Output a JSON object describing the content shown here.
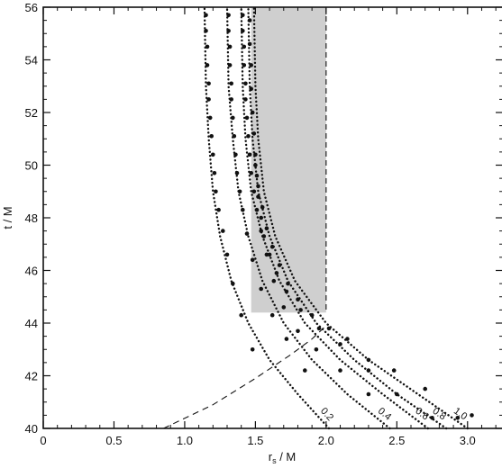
{
  "chart_data": {
    "type": "scatter",
    "title": "",
    "xlabel": "r_s / M",
    "xlabel_main": "r",
    "xlabel_sub": "s",
    "xlabel_rest": " / M",
    "ylabel": "t / M",
    "xlim": [
      0,
      3.25
    ],
    "ylim": [
      40,
      56
    ],
    "x_ticks": [
      0,
      0.5,
      1.0,
      1.5,
      2.0,
      2.5,
      3.0
    ],
    "x_tick_labels": [
      "0",
      "0.5",
      "1.0",
      "1.5",
      "2.0",
      "2.5",
      "3.0"
    ],
    "y_ticks": [
      40,
      42,
      44,
      46,
      48,
      50,
      52,
      54,
      56
    ],
    "y_tick_labels": [
      "40",
      "42",
      "44",
      "46",
      "48",
      "50",
      "52",
      "54",
      "56"
    ],
    "grid": false,
    "shaded_region": {
      "x_from": 1.47,
      "x_to": 2.0,
      "y_from": 44.4,
      "y_to": 56
    },
    "dashed_curve": {
      "x": [
        0.85,
        1.2,
        1.5,
        1.75,
        1.9,
        2.0
      ],
      "y": [
        40,
        40.9,
        41.9,
        42.8,
        43.4,
        43.9
      ]
    },
    "series": [
      {
        "name": "0.2",
        "curve": {
          "x": [
            2.02,
            1.8,
            1.6,
            1.45,
            1.33,
            1.25,
            1.2,
            1.17,
            1.15,
            1.14
          ],
          "y": [
            40,
            41.3,
            42.6,
            44,
            45.6,
            47.3,
            49,
            51,
            53,
            56
          ]
        },
        "points": {
          "x": [
            1.15,
            1.15,
            1.16,
            1.16,
            1.17,
            1.17,
            1.18,
            1.19,
            1.2,
            1.21,
            1.22,
            1.24,
            1.27,
            1.3,
            1.34,
            1.4,
            1.48
          ],
          "y": [
            55.7,
            55.1,
            54.5,
            53.8,
            53.1,
            52.5,
            51.8,
            51.1,
            50.4,
            49.7,
            49,
            48.3,
            47.5,
            46.6,
            45.5,
            44.3,
            43
          ]
        }
      },
      {
        "name": "0.4",
        "curve": {
          "x": [
            2.45,
            2.15,
            1.9,
            1.7,
            1.55,
            1.45,
            1.38,
            1.34,
            1.31,
            1.3
          ],
          "y": [
            40,
            41.3,
            42.6,
            44,
            45.6,
            47.3,
            49,
            51,
            53,
            56
          ]
        },
        "points": {
          "x": [
            1.31,
            1.31,
            1.32,
            1.32,
            1.33,
            1.33,
            1.34,
            1.35,
            1.36,
            1.37,
            1.39,
            1.41,
            1.44,
            1.48,
            1.54,
            1.62,
            1.72,
            1.85
          ],
          "y": [
            55.7,
            55.1,
            54.5,
            53.8,
            53.1,
            52.5,
            51.8,
            51.1,
            50.4,
            49.7,
            49,
            48.3,
            47.4,
            46.4,
            45.3,
            44.3,
            43.4,
            42.2
          ]
        }
      },
      {
        "name": "0.6",
        "curve": {
          "x": [
            2.72,
            2.4,
            2.1,
            1.85,
            1.67,
            1.55,
            1.47,
            1.43,
            1.41,
            1.4
          ],
          "y": [
            40,
            41.3,
            42.6,
            44,
            45.6,
            47.3,
            49,
            51,
            53,
            56
          ]
        },
        "points": {
          "x": [
            1.41,
            1.41,
            1.42,
            1.42,
            1.43,
            1.43,
            1.44,
            1.45,
            1.46,
            1.47,
            1.49,
            1.51,
            1.54,
            1.58,
            1.63,
            1.7,
            1.8,
            1.93,
            2.1,
            2.3
          ],
          "y": [
            55.7,
            55.1,
            54.5,
            53.8,
            53.1,
            52.5,
            51.8,
            51.1,
            50.4,
            49.7,
            49,
            48.3,
            47.5,
            46.6,
            45.6,
            44.6,
            43.7,
            43,
            42.2,
            41.3
          ]
        }
      },
      {
        "name": "0.8",
        "curve": {
          "x": [
            2.85,
            2.5,
            2.2,
            1.93,
            1.73,
            1.6,
            1.52,
            1.48,
            1.46,
            1.45
          ],
          "y": [
            40,
            41.3,
            42.6,
            44,
            45.6,
            47.3,
            49,
            51,
            53,
            56
          ]
        },
        "points": {
          "x": [
            1.46,
            1.46,
            1.47,
            1.47,
            1.48,
            1.49,
            1.5,
            1.51,
            1.52,
            1.54,
            1.56,
            1.6,
            1.65,
            1.72,
            1.82,
            1.95,
            2.1,
            2.3,
            2.5,
            2.75
          ],
          "y": [
            55.5,
            54.6,
            53.8,
            52.9,
            52,
            51.2,
            50.4,
            49.6,
            48.8,
            48,
            47.3,
            46.6,
            45.9,
            45.2,
            44.5,
            43.8,
            43.2,
            42.2,
            41.3,
            40.4
          ]
        }
      },
      {
        "name": "1.0",
        "curve": {
          "x": [
            3.0,
            2.65,
            2.3,
            2.0,
            1.78,
            1.64,
            1.56,
            1.52,
            1.5,
            1.49
          ],
          "y": [
            40,
            41.3,
            42.6,
            44,
            45.6,
            47.3,
            49,
            51,
            53,
            56
          ]
        },
        "points": {
          "x": [
            1.5,
            1.52,
            1.55,
            1.58,
            1.62,
            1.67,
            1.73,
            1.8,
            1.9,
            2.02,
            2.15,
            2.3,
            2.48,
            2.7,
            2.93,
            3.03
          ],
          "y": [
            50,
            49.2,
            48.4,
            47.6,
            46.9,
            46.2,
            45.5,
            44.9,
            44.3,
            43.8,
            43.4,
            42.6,
            42.2,
            41.5,
            40.4,
            40.5
          ]
        }
      }
    ]
  }
}
